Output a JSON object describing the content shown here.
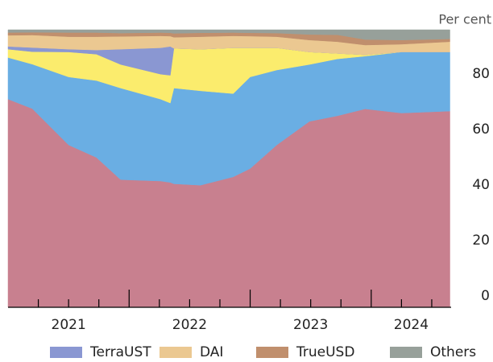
{
  "chart_data": {
    "type": "stacked_area",
    "ylabel": "Per cent",
    "x": [
      2021.0,
      2021.2,
      2021.5,
      2021.73,
      2021.93,
      2022.26,
      2022.34,
      2022.37,
      2022.59,
      2022.86,
      2023.0,
      2023.22,
      2023.49,
      2023.72,
      2023.95,
      2024.25,
      2024.65
    ],
    "xlim": [
      2021.0,
      2024.66
    ],
    "xticks": [
      {
        "value": 2021.5,
        "label": "2021"
      },
      {
        "value": 2022.5,
        "label": "2022"
      },
      {
        "value": 2023.5,
        "label": "2023"
      },
      {
        "value": 2024.33,
        "label": "2024"
      }
    ],
    "xticks_major": [
      2022,
      2023,
      2024
    ],
    "xticks_minor": [
      2021.25,
      2021.5,
      2021.75,
      2022.25,
      2022.5,
      2022.75,
      2023.25,
      2023.5,
      2023.75,
      2024.25,
      2024.5
    ],
    "ylim": [
      0,
      100
    ],
    "yticks": [
      0,
      20,
      40,
      60,
      80
    ],
    "grid": false,
    "legend": "bottom",
    "series": [
      {
        "color": "#c8808f",
        "values": [
          75,
          71.6,
          58.5,
          54,
          46,
          45.5,
          45,
          44.5,
          44,
          47,
          50,
          58.5,
          67,
          69,
          71.5,
          70,
          70.7
        ]
      },
      {
        "color": "#6aaee3",
        "values": [
          15,
          16,
          24.5,
          27.7,
          33,
          29.5,
          28.6,
          34.5,
          34,
          30,
          33,
          27,
          20.5,
          20.5,
          19,
          22,
          21.3
        ]
      },
      {
        "color": "#fbec6d",
        "values": [
          3,
          4.5,
          9,
          9.5,
          8.5,
          9,
          10,
          14.3,
          15,
          16.5,
          10.5,
          8,
          4.5,
          2,
          0.5,
          0,
          0
        ]
      },
      {
        "name": "TerraUST",
        "color": "#8a97d2",
        "values": [
          1,
          1.5,
          1,
          1.5,
          5.5,
          9.5,
          10.4,
          0,
          0,
          0,
          0,
          0,
          0,
          0,
          0,
          0,
          0
        ]
      },
      {
        "name": "DAI",
        "color": "#ebc891",
        "values": [
          4,
          4.5,
          4.5,
          4.8,
          4.6,
          4.3,
          3.7,
          4,
          4.5,
          4.3,
          4.2,
          4,
          4.3,
          4.2,
          3.5,
          2.8,
          3.7
        ]
      },
      {
        "name": "TrueUSD",
        "color": "#c08f6d",
        "values": [
          1,
          1,
          1.5,
          1.5,
          1.2,
          1.2,
          1.2,
          1.4,
          1.4,
          1.2,
          1.2,
          1.3,
          2,
          2.5,
          2,
          1.5,
          1
        ]
      },
      {
        "name": "Others",
        "color": "#97a09a",
        "values": [
          1,
          0.9,
          1,
          1,
          1.2,
          1,
          1.1,
          1.3,
          1.1,
          1,
          1.1,
          1.2,
          1.7,
          1.8,
          3.5,
          3.7,
          3.3
        ]
      }
    ]
  }
}
